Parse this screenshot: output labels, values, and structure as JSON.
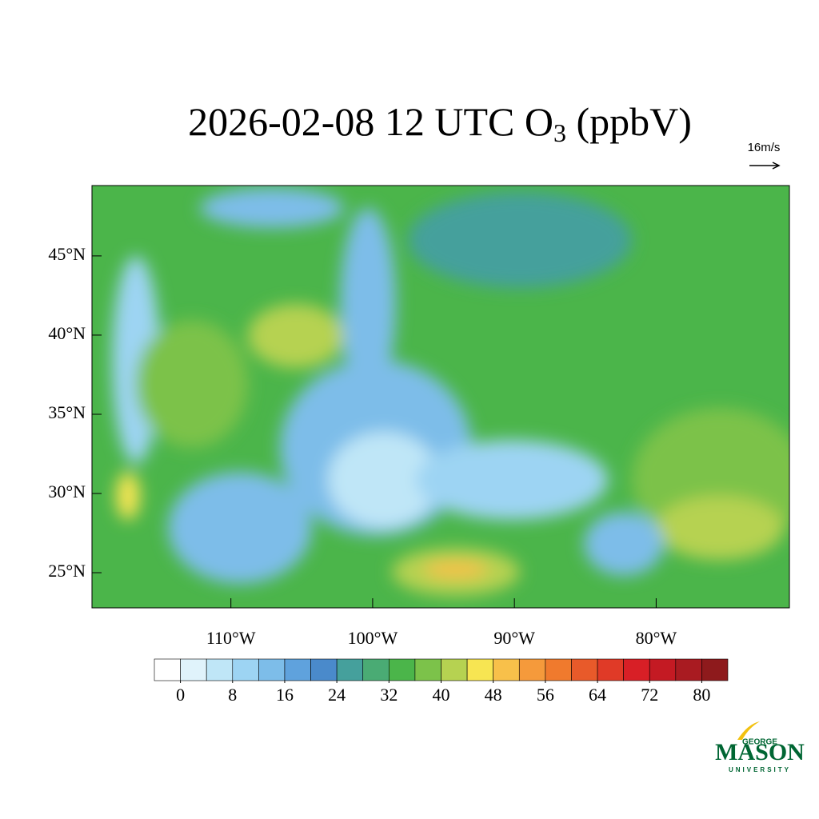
{
  "map": {
    "title": {
      "main": "2026-02-08 12 UTC O",
      "subscript": "3",
      "unit": " (ppbV)"
    },
    "wind_reference": "16m/s",
    "ylim": [
      22.78,
      49.44
    ],
    "xlim": [
      -119.8,
      -70.6
    ],
    "yticks": [
      {
        "value": 25,
        "label": "25°N"
      },
      {
        "value": 30,
        "label": "30°N"
      },
      {
        "value": 35,
        "label": "35°N"
      },
      {
        "value": 40,
        "label": "40°N"
      },
      {
        "value": 45,
        "label": "45°N"
      }
    ],
    "xticks": [
      {
        "value": -110,
        "label": "110°W"
      },
      {
        "value": -100,
        "label": "100°W"
      },
      {
        "value": -90,
        "label": "90°W"
      },
      {
        "value": -80,
        "label": "80°W"
      }
    ],
    "colorbar": {
      "range": [
        -4,
        84
      ],
      "ticks": [
        0,
        8,
        16,
        24,
        32,
        40,
        48,
        56,
        64,
        72,
        80
      ],
      "colors": [
        "#ffffff",
        "#e0f3fb",
        "#bfe6f7",
        "#9dd4f3",
        "#7dbde9",
        "#5fa2dd",
        "#4a8acb",
        "#45a09c",
        "#4aab74",
        "#4bb54a",
        "#7cc24a",
        "#b6d251",
        "#f7e552",
        "#f8c04a",
        "#f59a3b",
        "#f07a2d",
        "#e85a2a",
        "#e03a27",
        "#d81f26",
        "#c41a23",
        "#a91b21",
        "#8e1a1c"
      ]
    },
    "logo": {
      "top": "GEORGE",
      "main": "MASON",
      "bottom": "UNIVERSITY"
    }
  }
}
